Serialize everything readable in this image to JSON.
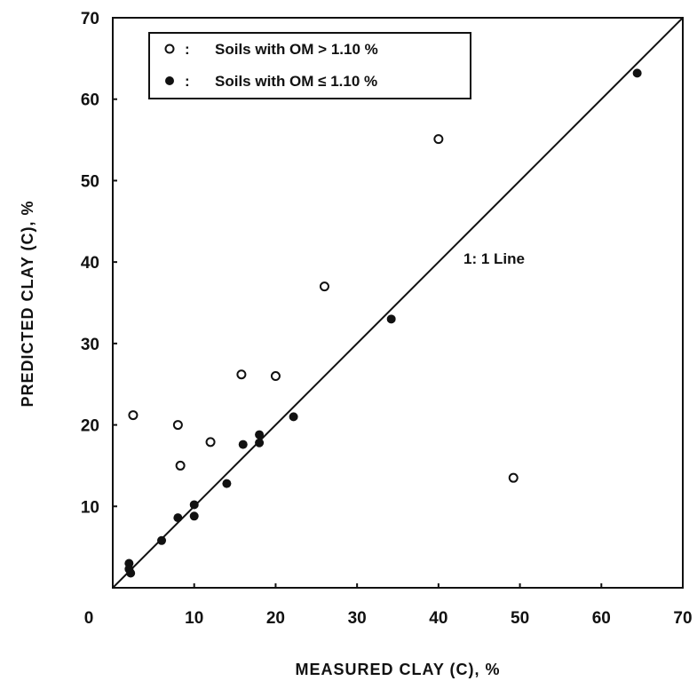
{
  "chart_data": {
    "type": "scatter",
    "title": "",
    "xlabel": "MEASURED CLAY (C), %",
    "ylabel": "PREDICTED CLAY (C), %",
    "xlim": [
      0,
      70
    ],
    "ylim": [
      0,
      70
    ],
    "x_ticks": [
      "0",
      "10",
      "20",
      "30",
      "40",
      "50",
      "60",
      "70"
    ],
    "y_ticks": [
      "10",
      "20",
      "30",
      "40",
      "50",
      "60",
      "70"
    ],
    "grid": false,
    "legend_position": "top-left",
    "series": [
      {
        "name": "Soils with OM > 1.10 %",
        "marker": "open-circle",
        "color": "#111111",
        "points": [
          {
            "x": 2.5,
            "y": 21.2
          },
          {
            "x": 8,
            "y": 20
          },
          {
            "x": 8.3,
            "y": 15
          },
          {
            "x": 12,
            "y": 17.9
          },
          {
            "x": 15.8,
            "y": 26.2
          },
          {
            "x": 20,
            "y": 26
          },
          {
            "x": 26,
            "y": 37
          },
          {
            "x": 40,
            "y": 55.1
          },
          {
            "x": 49.2,
            "y": 13.5
          }
        ]
      },
      {
        "name": "Soils with OM ≤ 1.10 %",
        "marker": "filled-circle",
        "color": "#111111",
        "points": [
          {
            "x": 2,
            "y": 3
          },
          {
            "x": 2,
            "y": 2.3
          },
          {
            "x": 2.2,
            "y": 1.8
          },
          {
            "x": 6,
            "y": 5.8
          },
          {
            "x": 8,
            "y": 8.6
          },
          {
            "x": 10,
            "y": 8.8
          },
          {
            "x": 10,
            "y": 10.2
          },
          {
            "x": 14,
            "y": 12.8
          },
          {
            "x": 16,
            "y": 17.6
          },
          {
            "x": 18,
            "y": 17.8
          },
          {
            "x": 18,
            "y": 18.8
          },
          {
            "x": 22.2,
            "y": 21
          },
          {
            "x": 34.2,
            "y": 33
          },
          {
            "x": 64.4,
            "y": 63.2
          }
        ]
      }
    ],
    "reference_line": {
      "label": "1: 1 Line",
      "from": [
        0,
        0
      ],
      "to": [
        70,
        70
      ]
    },
    "legend": {
      "entries": [
        {
          "symbol": "○",
          "separator": ":",
          "label": "Soils with OM > 1.10 %"
        },
        {
          "symbol": "●",
          "separator": ":",
          "label": "Soils with OM ≤ 1.10 %"
        }
      ]
    }
  }
}
